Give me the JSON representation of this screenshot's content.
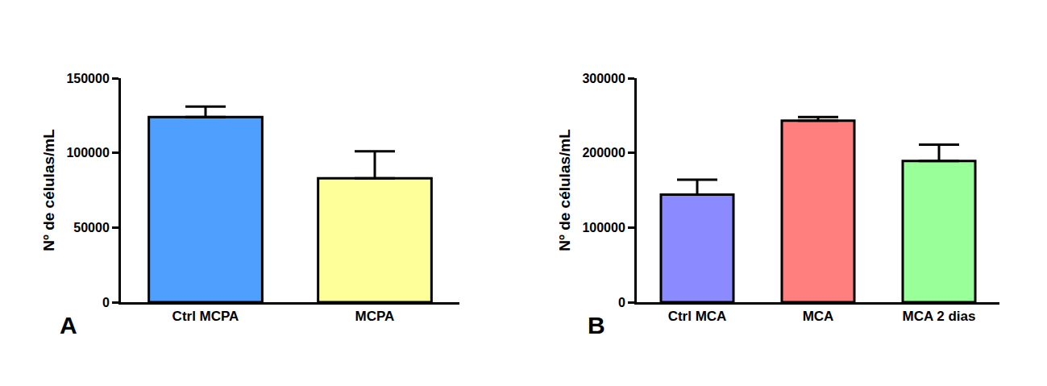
{
  "chart_data": [
    {
      "type": "bar",
      "annotations": [
        "A"
      ],
      "y_label": "Nº de células/mL",
      "categories": [
        "Ctrl MCPA",
        "MCPA"
      ],
      "values": [
        124000,
        83000
      ],
      "errors": [
        7000,
        18000
      ],
      "colors": [
        "#4f9fff",
        "#ffff99"
      ],
      "ylim": [
        0,
        150000
      ],
      "yticks": [
        0,
        50000,
        100000,
        150000
      ],
      "grid": false
    },
    {
      "type": "bar",
      "annotations": [
        "B"
      ],
      "y_label": "Nº de células/mL",
      "categories": [
        "Ctrl MCA",
        "MCA",
        "MCA 2 dias"
      ],
      "values": [
        144000,
        243000,
        189000
      ],
      "errors": [
        20000,
        5000,
        22000
      ],
      "colors": [
        "#8b8bff",
        "#ff7f7f",
        "#99ff99"
      ],
      "ylim": [
        0,
        300000
      ],
      "yticks": [
        0,
        100000,
        200000,
        300000
      ],
      "grid": false
    }
  ]
}
